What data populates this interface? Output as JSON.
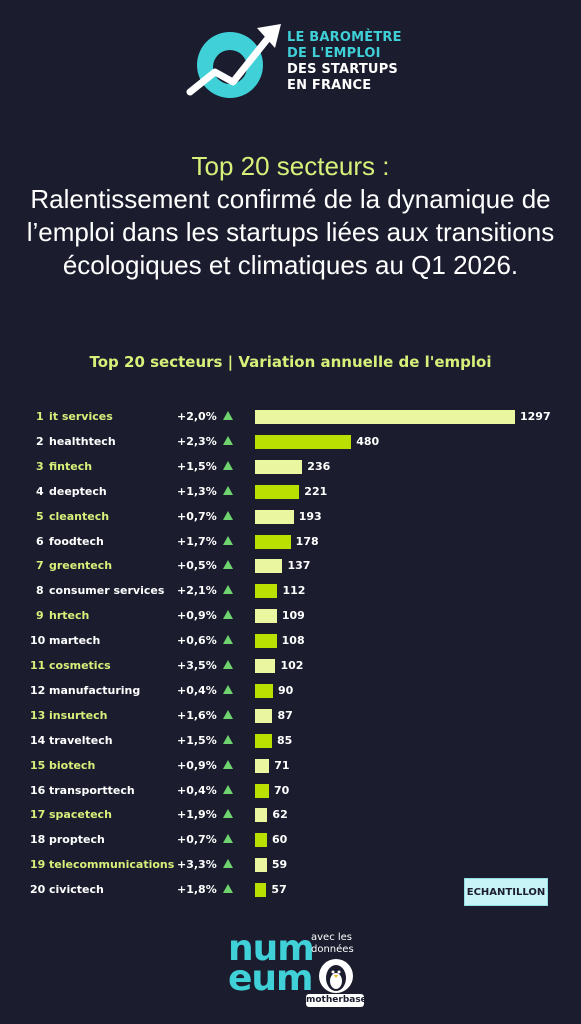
{
  "header": {
    "logo_lines": [
      "LE BAROMÈTRE",
      "DE L'EMPLOI",
      "DES STARTUPS",
      "EN FRANCE"
    ],
    "headline_line1": "Top 20 secteurs :",
    "headline_line2": "Ralentissement confirmé de la dynamique de l’emploi dans les startups liées aux transitions écologiques et climatiques au Q1 2026."
  },
  "colors": {
    "background": "#1b1d2e",
    "accent_lime": "#d7f07a",
    "accent_teal": "#3fd0d8",
    "bar_light": "#eaf7a0",
    "bar_dark": "#b9e000",
    "triangle_green": "#6fd46f"
  },
  "chart_data": {
    "type": "bar",
    "orientation": "horizontal",
    "title": "Top 20 secteurs | Variation annuelle de l'emploi",
    "categories": [
      "it services",
      "healthtech",
      "fintech",
      "deeptech",
      "cleantech",
      "foodtech",
      "greentech",
      "consumer services",
      "hrtech",
      "martech",
      "cosmetics",
      "manufacturing",
      "insurtech",
      "traveltech",
      "biotech",
      "transporttech",
      "spacetech",
      "proptech",
      "telecommunications",
      "civictech"
    ],
    "ranks": [
      "1",
      "2",
      "3",
      "4",
      "5",
      "6",
      "7",
      "8",
      "9",
      "10",
      "11",
      "12",
      "13",
      "14",
      "15",
      "16",
      "17",
      "18",
      "19",
      "20"
    ],
    "variation": [
      "+2,0%",
      "+2,3%",
      "+1,5%",
      "+1,3%",
      "+0,7%",
      "+1,7%",
      "+0,5%",
      "+2,1%",
      "+0,9%",
      "+0,6%",
      "+3,5%",
      "+0,4%",
      "+1,6%",
      "+1,5%",
      "+0,9%",
      "+0,4%",
      "+1,9%",
      "+0,7%",
      "+3,3%",
      "+1,8%"
    ],
    "values": [
      1297,
      480,
      236,
      221,
      193,
      178,
      137,
      112,
      109,
      108,
      102,
      90,
      87,
      85,
      71,
      70,
      62,
      60,
      59,
      57
    ],
    "trend": "up"
  },
  "badge": {
    "label": "ECHANTILLON"
  },
  "footer": {
    "numeum_logo": "num eum",
    "avec_label": "avec les données",
    "motherbase_label": "motherbase",
    "mb_icon": "penguin-icon"
  }
}
